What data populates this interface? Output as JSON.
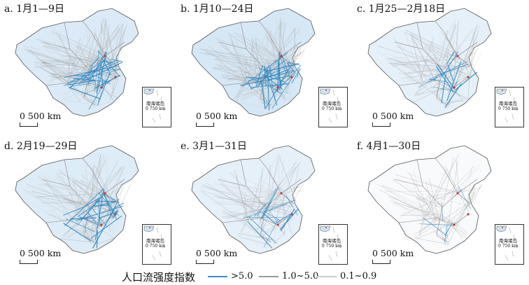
{
  "panels": [
    {
      "label": "a. 1月1—9日",
      "level": 0.8
    },
    {
      "label": "b. 1月10—24日",
      "level": 1.0
    },
    {
      "label": "c. 1月25—2月18日",
      "level": 0.4
    },
    {
      "label": "d. 2月19—29日",
      "level": 0.65
    },
    {
      "label": "e. 3月1—31日",
      "level": 0.35
    },
    {
      "label": "f. 4月1—30日",
      "level": 0.15
    }
  ],
  "scale_bar": {
    "label": "0  500 km"
  },
  "inset": {
    "name": "南海诸岛",
    "scale_label": "0  750 km"
  },
  "legend": {
    "title": "人口流强度指数",
    "items": [
      {
        "label": ">5.0",
        "color": "#3b8ec4"
      },
      {
        "label": "1.0~5.0",
        "color": "#9a9a9a"
      },
      {
        "label": "0.1~0.9",
        "color": "#cfcfcf"
      }
    ]
  },
  "colors": {
    "strong_flow": "#2e86c1",
    "light_fill": "#cfe3f3",
    "boundary": "#6b4a4a"
  }
}
